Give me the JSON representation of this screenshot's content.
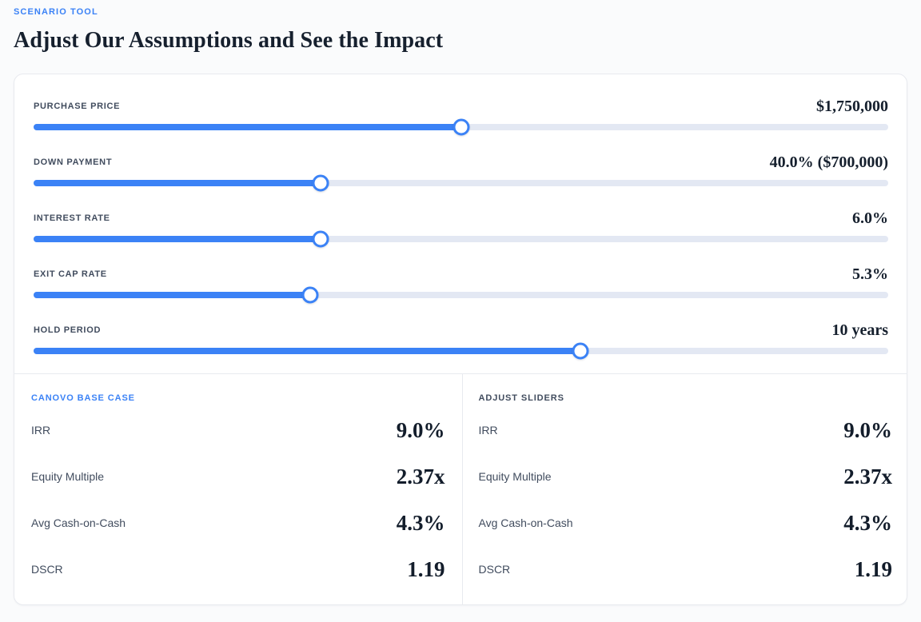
{
  "header": {
    "eyebrow": "SCENARIO TOOL",
    "title": "Adjust Our Assumptions and See the Impact"
  },
  "colors": {
    "accent_blue": "#3b82f6",
    "track_background": "#e3e8f3",
    "dark_navy": "#16202e",
    "label_slate": "#414c5e",
    "border": "#e8eaef"
  },
  "sliders": [
    {
      "label": "PURCHASE PRICE",
      "value": "$1,750,000",
      "fill": "50%"
    },
    {
      "label": "DOWN PAYMENT",
      "value": "40.0% ($700,000)",
      "fill": "33.6%"
    },
    {
      "label": "INTEREST RATE",
      "value": "6.0%",
      "fill": "33.6%"
    },
    {
      "label": "EXIT CAP RATE",
      "value": "5.3%",
      "fill": "32.4%"
    },
    {
      "label": "HOLD PERIOD",
      "value": "10 years",
      "fill": "64%"
    }
  ],
  "panels": [
    {
      "heading": "CANOVO BASE CASE",
      "heading_color": "#3b82f6",
      "metrics": [
        {
          "label": "IRR",
          "value": "9.0%"
        },
        {
          "label": "Equity Multiple",
          "value": "2.37x"
        },
        {
          "label": "Avg Cash-on-Cash",
          "value": "4.3%"
        },
        {
          "label": "DSCR",
          "value": "1.19"
        }
      ]
    },
    {
      "heading": "ADJUST SLIDERS",
      "heading_color": "#414c5e",
      "metrics": [
        {
          "label": "IRR",
          "value": "9.0%"
        },
        {
          "label": "Equity Multiple",
          "value": "2.37x"
        },
        {
          "label": "Avg Cash-on-Cash",
          "value": "4.3%"
        },
        {
          "label": "DSCR",
          "value": "1.19"
        }
      ]
    }
  ]
}
